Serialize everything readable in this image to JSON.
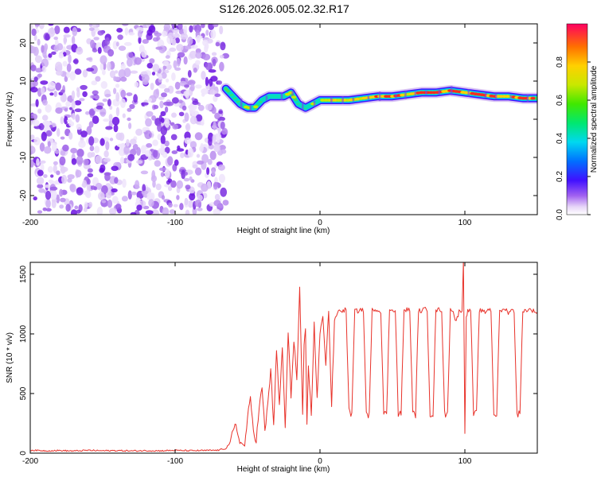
{
  "figure_title": "S126.2026.005.02.32.R17",
  "chart_data": [
    {
      "type": "heatmap",
      "title": "S126.2026.005.02.32.R17",
      "xlabel": "Height of straight line (km)",
      "ylabel": "Frequency (Hz)",
      "xlim": [
        -200,
        150
      ],
      "ylim": [
        -25,
        25
      ],
      "x_ticks": [
        -200,
        -100,
        0,
        100
      ],
      "x_tick_labels": [
        "-200",
        "-100",
        "0",
        "100"
      ],
      "y_ticks": [
        -20,
        -10,
        0,
        10,
        20
      ],
      "y_tick_labels": [
        "-20",
        "-10",
        "0",
        "10",
        "20"
      ],
      "noise_region_x": [
        -200,
        -65
      ],
      "ridge": {
        "x": [
          -65,
          -60,
          -55,
          -50,
          -45,
          -40,
          -35,
          -30,
          -25,
          -20,
          -15,
          -10,
          -5,
          0,
          10,
          20,
          30,
          40,
          50,
          60,
          70,
          80,
          90,
          100,
          110,
          120,
          130,
          140,
          150
        ],
        "freq_hz": [
          8,
          6,
          4,
          3,
          3,
          5,
          6,
          6,
          6,
          7,
          4,
          3,
          4,
          5,
          5,
          5,
          5.5,
          6,
          6,
          6.5,
          7,
          7,
          7.5,
          7,
          6.5,
          6,
          6,
          5.5,
          5.5
        ],
        "amplitude": [
          0.4,
          0.55,
          0.6,
          0.65,
          0.6,
          0.55,
          0.5,
          0.55,
          0.6,
          0.6,
          0.6,
          0.55,
          0.6,
          0.65,
          0.75,
          0.7,
          0.75,
          0.85,
          0.8,
          0.75,
          0.85,
          0.85,
          0.85,
          0.8,
          0.9,
          0.85,
          0.75,
          0.85,
          0.85
        ]
      },
      "colorbar": {
        "label": "Normalized spectral amplitude",
        "range": [
          0,
          1
        ],
        "ticks": [
          0.0,
          0.2,
          0.4,
          0.6,
          0.8
        ],
        "tick_labels": [
          "0.0",
          "0.2",
          "0.4",
          "0.6",
          "0.8"
        ]
      }
    },
    {
      "type": "line",
      "xlabel": "Height of straight line (km)",
      "ylabel": "SNR (10 * v/v)",
      "xlim": [
        -200,
        150
      ],
      "ylim": [
        0,
        1600
      ],
      "x_ticks": [
        -200,
        -100,
        0,
        100
      ],
      "x_tick_labels": [
        "-200",
        "-100",
        "0",
        "100"
      ],
      "y_ticks": [
        0,
        500,
        1000,
        1500
      ],
      "y_tick_labels": [
        "0",
        "500",
        "1000",
        "1500"
      ],
      "color": "#e8322a",
      "series": [
        {
          "name": "SNR",
          "x": [
            -200,
            -190,
            -180,
            -170,
            -160,
            -150,
            -140,
            -130,
            -120,
            -110,
            -100,
            -90,
            -80,
            -70,
            -65,
            -62,
            -60,
            -58,
            -56,
            -54,
            -52,
            -50,
            -48,
            -46,
            -44,
            -42,
            -40,
            -38,
            -36,
            -34,
            -32,
            -30,
            -28,
            -26,
            -24,
            -22,
            -20,
            -18,
            -16,
            -14,
            -12,
            -11,
            -10,
            -9,
            -8,
            -6,
            -4,
            -2,
            0,
            2,
            4,
            6,
            8,
            10,
            12,
            14,
            16,
            18,
            20,
            22,
            24,
            26,
            28,
            30,
            32,
            34,
            36,
            38,
            40,
            42,
            44,
            46,
            48,
            50,
            52,
            54,
            56,
            58,
            60,
            62,
            64,
            66,
            68,
            70,
            72,
            74,
            76,
            78,
            80,
            82,
            84,
            86,
            88,
            90,
            92,
            94,
            96,
            98,
            99,
            100,
            101,
            102,
            104,
            106,
            108,
            110,
            112,
            114,
            116,
            118,
            120,
            122,
            124,
            126,
            128,
            130,
            132,
            134,
            136,
            138,
            140,
            142,
            144,
            146,
            148,
            150
          ],
          "values": [
            25,
            20,
            22,
            18,
            24,
            20,
            22,
            19,
            21,
            20,
            23,
            21,
            22,
            25,
            40,
            90,
            180,
            240,
            120,
            80,
            60,
            300,
            450,
            200,
            100,
            380,
            550,
            180,
            420,
            700,
            250,
            850,
            400,
            900,
            200,
            1000,
            480,
            960,
            600,
            1400,
            300,
            880,
            1050,
            220,
            750,
            300,
            1100,
            450,
            1000,
            1150,
            750,
            1200,
            400,
            1100,
            1180,
            1200,
            1190,
            1210,
            350,
            330,
            1200,
            1190,
            1205,
            1195,
            330,
            320,
            1200,
            1210,
            1195,
            1190,
            330,
            325,
            1200,
            1210,
            1190,
            330,
            330,
            1195,
            1205,
            1200,
            330,
            325,
            1200,
            1190,
            1210,
            1200,
            330,
            330,
            1195,
            1205,
            1200,
            330,
            325,
            1220,
            1180,
            1100,
            1190,
            1200,
            1600,
            180,
            1150,
            1190,
            1205,
            330,
            330,
            1200,
            1190,
            1180,
            1210,
            1200,
            330,
            325,
            1200,
            1195,
            1210,
            1180,
            1200,
            1190,
            330,
            330,
            1200,
            1195,
            1205,
            1200,
            1190,
            1180
          ]
        }
      ]
    }
  ]
}
